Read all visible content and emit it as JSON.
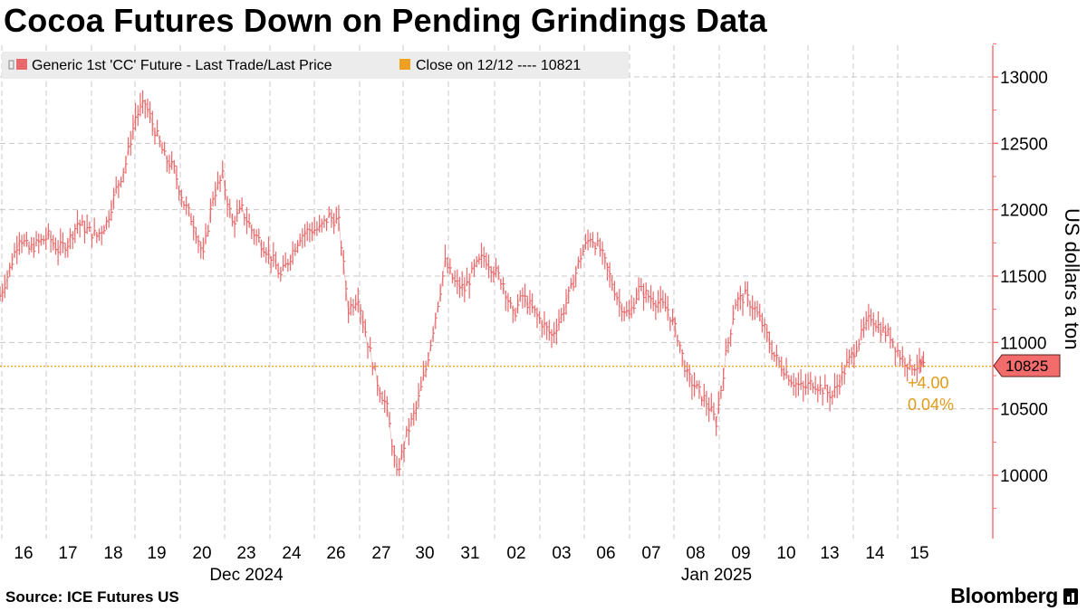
{
  "header": {
    "title": "Cocoa Futures Down on Pending Grindings Data"
  },
  "footer": {
    "source": "Source: ICE Futures US",
    "brand": "Bloomberg"
  },
  "colors": {
    "series": "#e8696b",
    "close_line": "#f0a020",
    "change_text": "#e09a1a",
    "price_tag": "#f26c6c",
    "axis": "#f26c6c",
    "grid": "#c8c8c8",
    "legend_bg": "#ececec"
  },
  "chart_data": {
    "type": "line",
    "title": "Cocoa Futures Down on Pending Grindings Data",
    "ylabel": "US dollars a ton",
    "ylim": [
      9650,
      13250
    ],
    "yticks": [
      10000,
      10500,
      11000,
      11500,
      12000,
      12500,
      13000
    ],
    "grid": true,
    "legend_position": "top-left",
    "legend": [
      {
        "label": "Generic 1st 'CC' Future - Last Trade/Last Price",
        "marker": "bar",
        "color": "#e8696b"
      },
      {
        "label": "Close on 12/12 ---- 10821",
        "marker": "square",
        "color": "#f0a020"
      }
    ],
    "x_ticks": [
      "16",
      "17",
      "18",
      "19",
      "20",
      "23",
      "24",
      "26",
      "27",
      "30",
      "31",
      "02",
      "03",
      "06",
      "07",
      "08",
      "09",
      "10",
      "13",
      "14",
      "15"
    ],
    "x_groups": [
      {
        "label": "Dec 2024",
        "span": [
          "16",
          "24"
        ]
      },
      {
        "label": "Jan 2025",
        "span": [
          "08",
          "15"
        ]
      }
    ],
    "reference_line": {
      "label": "Close on 12/12",
      "value": 10821
    },
    "last_price": {
      "value": "10825",
      "change": "+4.00",
      "change_pct": "0.04%"
    },
    "series": [
      {
        "name": "Generic 1st 'CC' Future - Last Trade/Last Price",
        "x": [
          "16",
          "17",
          "18",
          "19",
          "20",
          "23",
          "24",
          "26",
          "27",
          "30",
          "31",
          "02",
          "03",
          "06",
          "07",
          "08",
          "09",
          "10",
          "13",
          "14",
          "15"
        ],
        "values": [
          11550,
          11800,
          12600,
          12100,
          12050,
          11750,
          11650,
          11950,
          10500,
          11100,
          11600,
          11350,
          11300,
          11500,
          11300,
          10600,
          11250,
          10700,
          10800,
          11050,
          10825
        ]
      }
    ],
    "intraday_path": [
      [
        0,
        11350
      ],
      [
        5,
        11550
      ],
      [
        10,
        11800
      ],
      [
        15,
        11700
      ],
      [
        20,
        11750
      ],
      [
        25,
        11800
      ],
      [
        30,
        11700
      ],
      [
        35,
        11750
      ],
      [
        40,
        11900
      ],
      [
        45,
        11850
      ],
      [
        50,
        11800
      ],
      [
        55,
        11900
      ],
      [
        60,
        12150
      ],
      [
        65,
        12350
      ],
      [
        70,
        12700
      ],
      [
        75,
        12800
      ],
      [
        80,
        12600
      ],
      [
        85,
        12400
      ],
      [
        90,
        12300
      ],
      [
        95,
        12050
      ],
      [
        100,
        11900
      ],
      [
        105,
        11650
      ],
      [
        110,
        12100
      ],
      [
        115,
        12250
      ],
      [
        120,
        11900
      ],
      [
        125,
        12000
      ],
      [
        130,
        11850
      ],
      [
        135,
        11750
      ],
      [
        140,
        11650
      ],
      [
        145,
        11500
      ],
      [
        150,
        11650
      ],
      [
        155,
        11800
      ],
      [
        160,
        11850
      ],
      [
        165,
        11850
      ],
      [
        170,
        11950
      ],
      [
        175,
        11900
      ],
      [
        180,
        11250
      ],
      [
        185,
        11350
      ],
      [
        190,
        11000
      ],
      [
        195,
        10700
      ],
      [
        200,
        10500
      ],
      [
        205,
        10000
      ],
      [
        210,
        10300
      ],
      [
        215,
        10500
      ],
      [
        220,
        10800
      ],
      [
        225,
        11200
      ],
      [
        230,
        11600
      ],
      [
        235,
        11450
      ],
      [
        240,
        11400
      ],
      [
        245,
        11550
      ],
      [
        250,
        11650
      ],
      [
        255,
        11550
      ],
      [
        260,
        11450
      ],
      [
        265,
        11200
      ],
      [
        270,
        11350
      ],
      [
        275,
        11250
      ],
      [
        280,
        11150
      ],
      [
        285,
        11050
      ],
      [
        290,
        11200
      ],
      [
        295,
        11400
      ],
      [
        300,
        11650
      ],
      [
        305,
        11800
      ],
      [
        310,
        11700
      ],
      [
        315,
        11500
      ],
      [
        320,
        11300
      ],
      [
        325,
        11200
      ],
      [
        330,
        11400
      ],
      [
        335,
        11350
      ],
      [
        340,
        11300
      ],
      [
        345,
        11250
      ],
      [
        350,
        11050
      ],
      [
        355,
        10750
      ],
      [
        360,
        10650
      ],
      [
        365,
        10550
      ],
      [
        370,
        10400
      ],
      [
        375,
        10900
      ],
      [
        380,
        11300
      ],
      [
        385,
        11350
      ],
      [
        390,
        11250
      ],
      [
        395,
        11100
      ],
      [
        400,
        10900
      ],
      [
        405,
        10800
      ],
      [
        410,
        10700
      ],
      [
        415,
        10650
      ],
      [
        420,
        10700
      ],
      [
        425,
        10650
      ],
      [
        430,
        10600
      ],
      [
        435,
        10750
      ],
      [
        440,
        10900
      ],
      [
        445,
        11050
      ],
      [
        450,
        11200
      ],
      [
        455,
        11100
      ],
      [
        460,
        11050
      ],
      [
        465,
        10900
      ],
      [
        470,
        10825
      ],
      [
        475,
        10825
      ]
    ]
  }
}
